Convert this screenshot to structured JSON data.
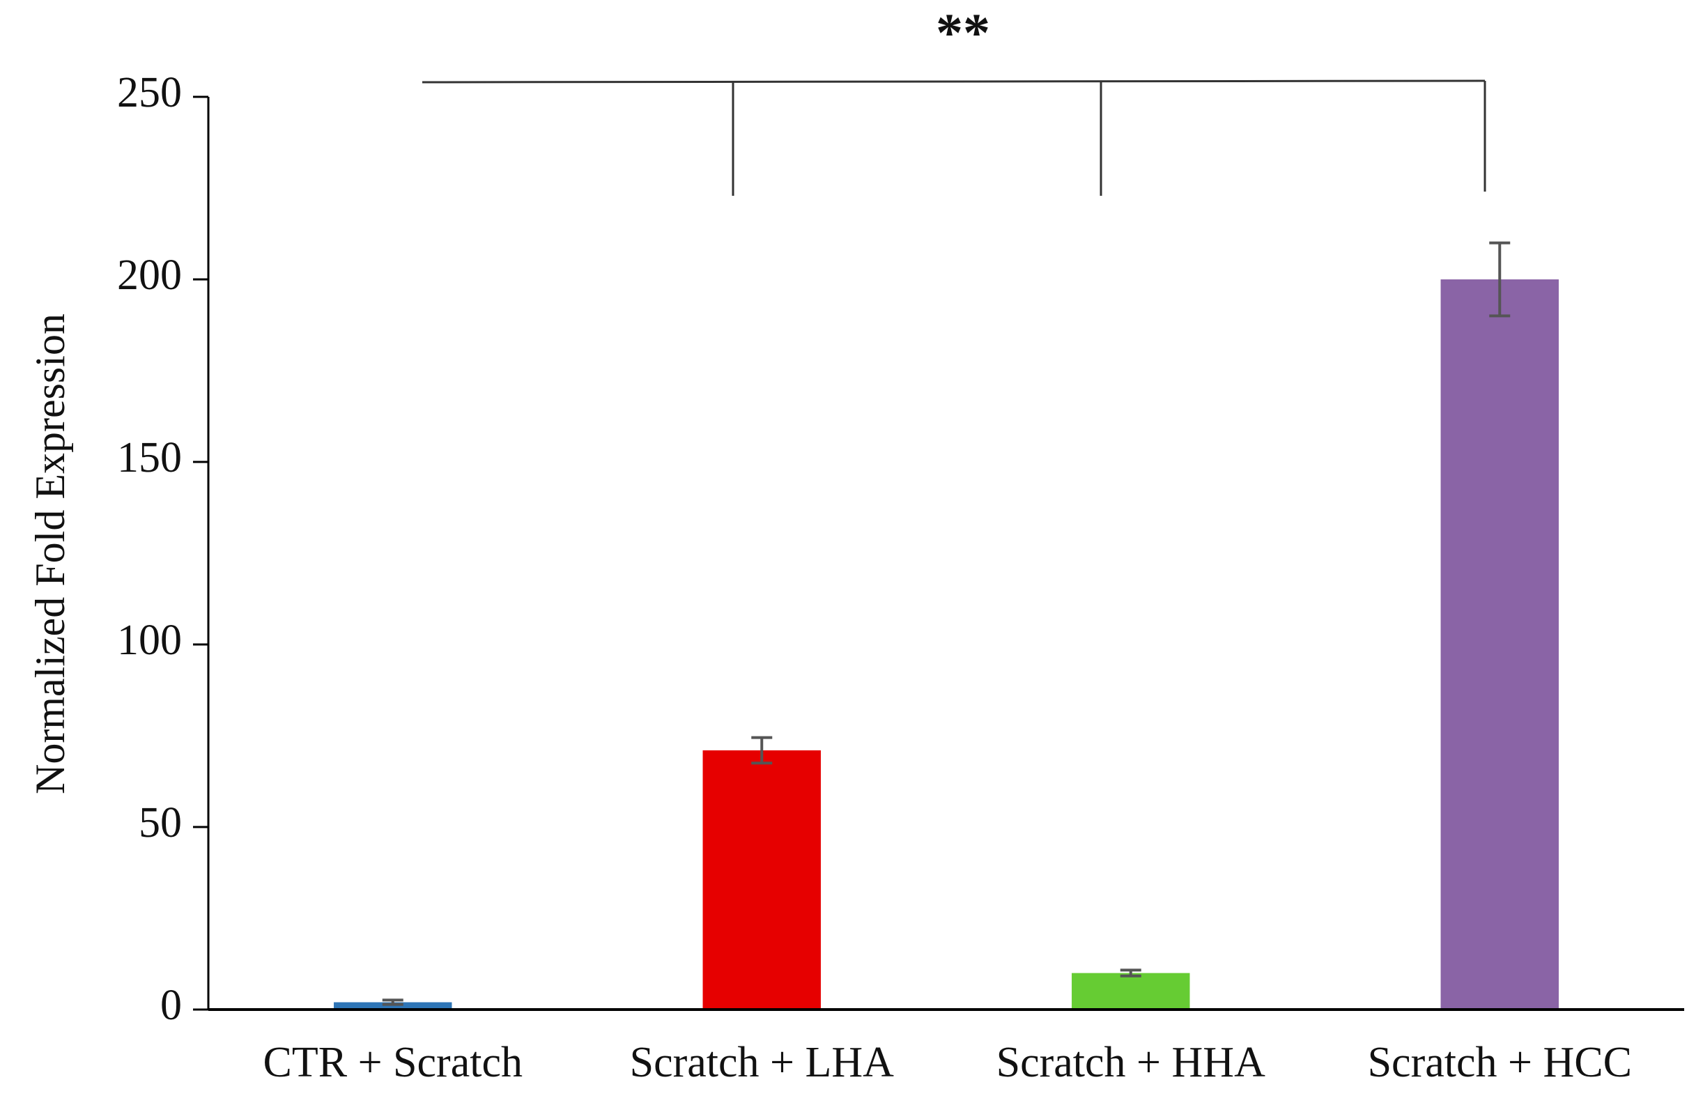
{
  "chart_data": {
    "type": "bar",
    "y_label": "Normalized Fold Expression",
    "annotation": "**",
    "categories": [
      "CTR + Scratch",
      "Scratch + LHA",
      "Scratch + HHA",
      "Scratch + HCC"
    ],
    "values": [
      2,
      71,
      10,
      200
    ],
    "errors": [
      0.6,
      3.5,
      0.8,
      10
    ],
    "colors": [
      "#2e75b6",
      "#e60000",
      "#66cc33",
      "#8a64a6"
    ],
    "ylim": [
      0,
      250
    ],
    "yticks": [
      0,
      50,
      100,
      150,
      200,
      250
    ],
    "grid": false
  }
}
